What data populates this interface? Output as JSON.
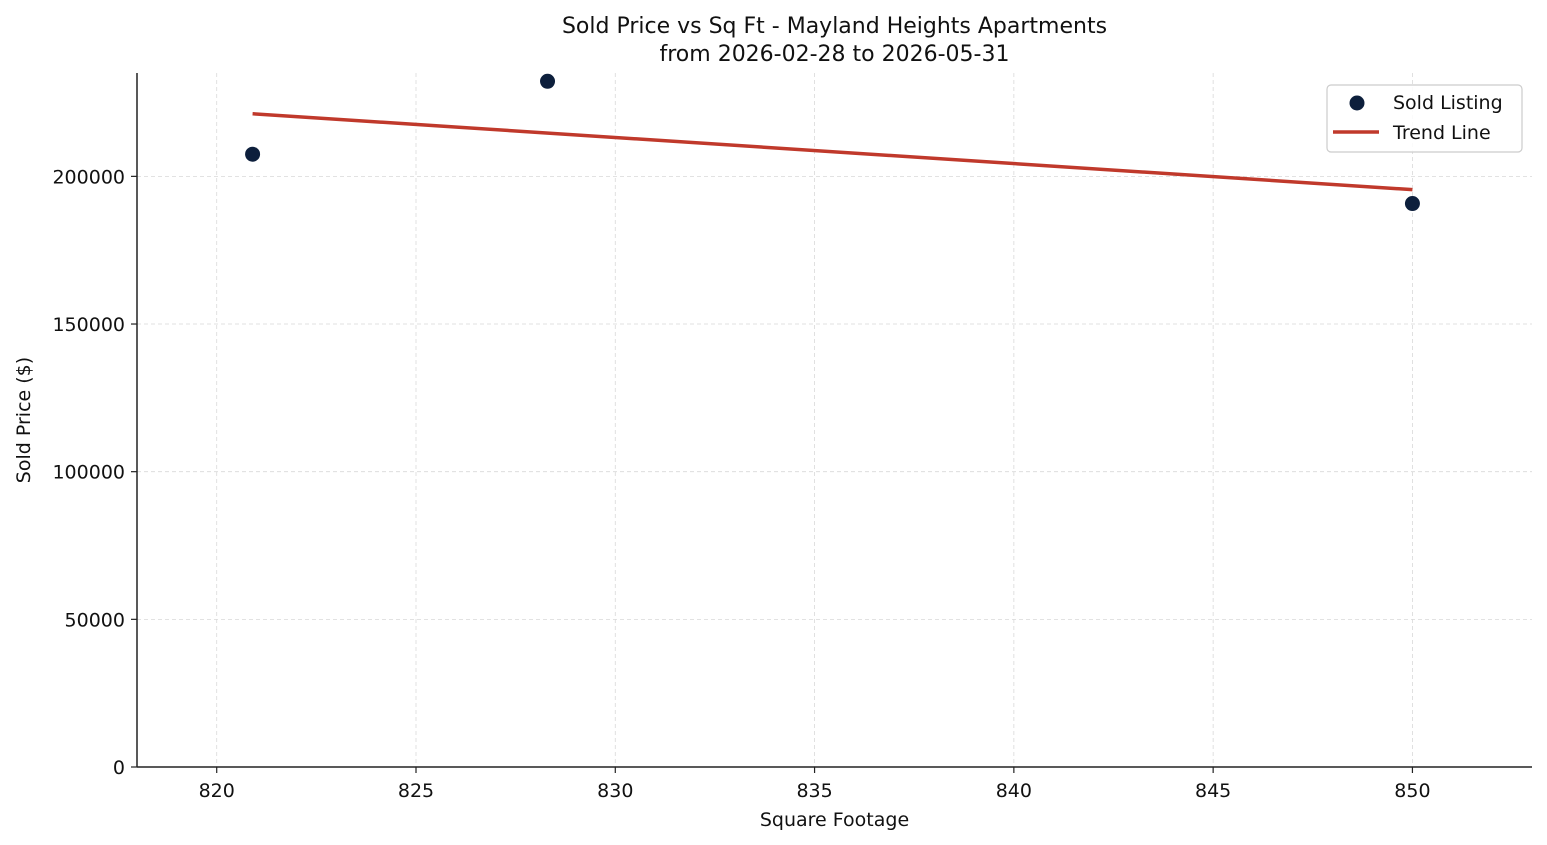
{
  "chart_data": {
    "type": "scatter",
    "title": "Sold Price vs Sq Ft - Mayland Heights Apartments",
    "subtitle": "from 2026-02-28 to 2026-05-31",
    "xlabel": "Square Footage",
    "ylabel": "Sold Price ($)",
    "xlim": [
      818,
      853
    ],
    "ylim": [
      0,
      235000
    ],
    "x_ticks": [
      820,
      825,
      830,
      835,
      840,
      845,
      850
    ],
    "y_ticks": [
      0,
      50000,
      100000,
      150000,
      200000
    ],
    "grid": true,
    "legend_position": "top-right",
    "series": [
      {
        "name": "Sold Listing",
        "kind": "scatter",
        "color": "#0d1f3c",
        "points": [
          {
            "x": 820.9,
            "y": 207500
          },
          {
            "x": 828.3,
            "y": 232200
          },
          {
            "x": 850.0,
            "y": 190800
          }
        ]
      },
      {
        "name": "Trend Line",
        "kind": "line",
        "color": "#c0392b",
        "points": [
          {
            "x": 820.9,
            "y": 221200
          },
          {
            "x": 850.0,
            "y": 195500
          }
        ]
      }
    ]
  }
}
